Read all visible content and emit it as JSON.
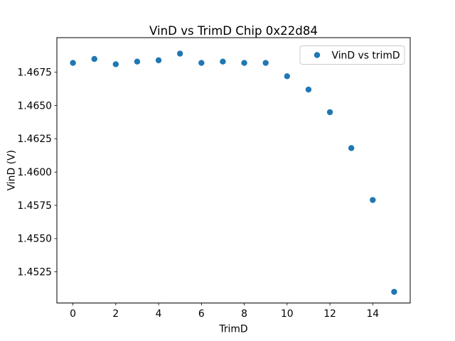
{
  "chart_data": {
    "type": "scatter",
    "title": "VinD vs TrimD Chip 0x22d84",
    "xlabel": "TrimD",
    "ylabel": "VinD (V)",
    "xlim": [
      -0.75,
      15.75
    ],
    "ylim": [
      1.45016,
      1.4701
    ],
    "xticks": [
      0,
      2,
      4,
      6,
      8,
      10,
      12,
      14
    ],
    "yticks": [
      1.4525,
      1.455,
      1.4575,
      1.46,
      1.4625,
      1.465,
      1.4675
    ],
    "grid": false,
    "legend": {
      "position": "upper-right"
    },
    "series": [
      {
        "name": "VinD vs trimD",
        "color": "#1f77b4",
        "x": [
          0,
          1,
          2,
          3,
          4,
          5,
          6,
          7,
          8,
          9,
          10,
          11,
          12,
          13,
          14,
          15
        ],
        "y": [
          1.4682,
          1.4685,
          1.4681,
          1.4683,
          1.4684,
          1.4689,
          1.4682,
          1.4683,
          1.4682,
          1.4682,
          1.4672,
          1.4662,
          1.4645,
          1.4618,
          1.4579,
          1.451
        ]
      }
    ]
  },
  "colors": {
    "marker": "#1f77b4",
    "spine": "#000000",
    "background": "#ffffff",
    "legend_border": "#cccccc"
  }
}
